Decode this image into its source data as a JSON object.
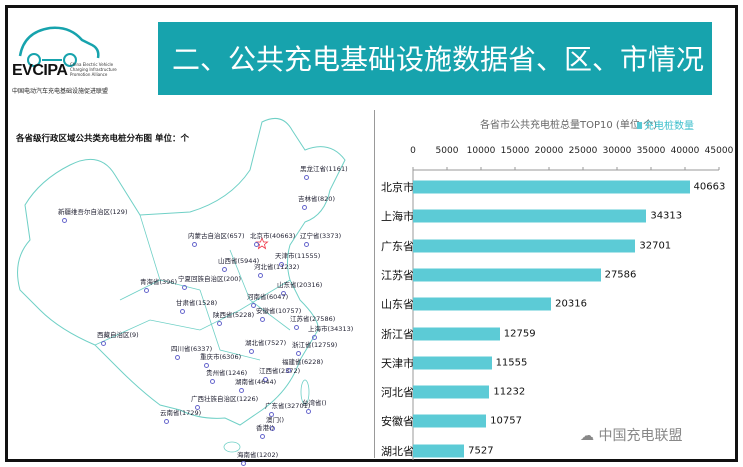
{
  "header": {
    "logo_text": "EVCIPA",
    "logo_en": "China Electric Vehicle Charging Infrastructure Promotion Alliance",
    "logo_cn": "中国电动汽车充电基础设施促进联盟",
    "title": "二、公共充电基础设施数据省、区、市情况",
    "accent_color": "#17a3ad"
  },
  "map": {
    "title": "各省级行政区域公共类充电桩分布图  单位：个",
    "labels": [
      "黑龙江省(1161)",
      "吉林省(820)",
      "新疆维吾尔自治区(129)",
      "内蒙古自治区(657)",
      "北京市(40663)",
      "辽宁省(3373)",
      "天津市(11555)",
      "山西省(5944)",
      "河北省(11232)",
      "青海省(396)",
      "宁夏回族自治区(200)",
      "山东省(20316)",
      "河南省(6047)",
      "甘肃省(1528)",
      "安徽省(10757)",
      "陕西省(5228)",
      "江苏省(27586)",
      "上海市(34313)",
      "西藏自治区(9)",
      "湖北省(7527)",
      "浙江省(12759)",
      "四川省(6337)",
      "重庆市(6306)",
      "福建省(6228)",
      "贵州省(1246)",
      "江西省(2372)",
      "湖南省(4644)",
      "广西壮族自治区(1226)",
      "广东省(32701)",
      "台湾省()",
      "云南省(1729)",
      "澳门()",
      "香港()",
      "海南省(1202)"
    ]
  },
  "chart_data": {
    "type": "bar",
    "orientation": "horizontal",
    "title": "各省市公共充电桩总量TOP10 (单位:个)",
    "legend": "充电桩数量",
    "legend_position": "top-right",
    "categories": [
      "北京市",
      "上海市",
      "广东省",
      "江苏省",
      "山东省",
      "浙江省",
      "天津市",
      "河北省",
      "安徽省",
      "湖北省"
    ],
    "series": [
      {
        "name": "充电桩数量",
        "values": [
          40663,
          34313,
          32701,
          27586,
          20316,
          12759,
          11555,
          11232,
          10757,
          7527
        ],
        "color": "#5ccbd6"
      }
    ],
    "xlim": [
      0,
      45000
    ],
    "ticks": [
      "0",
      "5000",
      "10000",
      "15000",
      "20000",
      "25000",
      "30000",
      "35000",
      "40000",
      "45000"
    ],
    "axis_position": "top",
    "grid": false
  },
  "watermark": "中国充电联盟"
}
